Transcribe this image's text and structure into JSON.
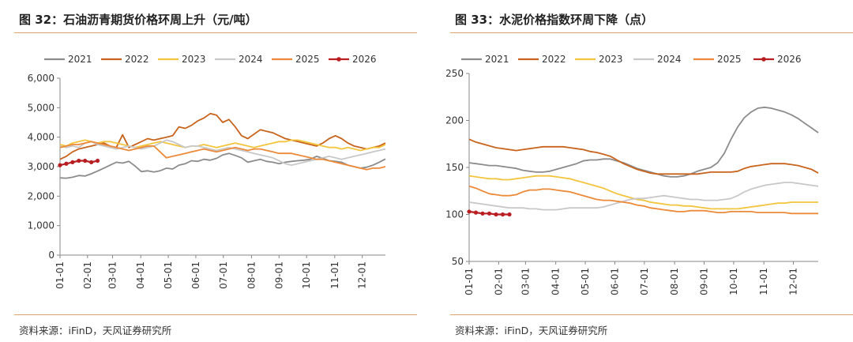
{
  "colors": {
    "2021": "#8c8c8c",
    "2022": "#c8641e",
    "2023": "#f2c53d",
    "2024": "#c8c8c8",
    "2025": "#ec8a3a",
    "2026": "#b81e22",
    "rule": "#d9a36a"
  },
  "left": {
    "title": "图 32：石油沥青期货价格环周上升（元/吨）",
    "source": "资料来源：iFinD，天风证券研究所"
  },
  "right": {
    "title": "图 33：水泥价格指数环周下降（点）",
    "source": "资料来源：iFinD，天风证券研究所"
  },
  "chart_data": [
    {
      "type": "line",
      "title": "石油沥青期货价格环周上升（元/吨）",
      "ylim": [
        0,
        6000
      ],
      "yticks": [
        0,
        1000,
        2000,
        3000,
        4000,
        5000,
        6000
      ],
      "ytick_labels": [
        "0",
        "1,000",
        "2,000",
        "3,000",
        "4,000",
        "5,000",
        "6,000"
      ],
      "xlim": [
        0,
        52
      ],
      "xtick_weeks": [
        0,
        4.4,
        8.4,
        12.9,
        17.3,
        21.7,
        26.1,
        30.6,
        35,
        39.4,
        43.9,
        48.3
      ],
      "xtick_labels": [
        "01-01",
        "02-01",
        "03-01",
        "04-01",
        "05-01",
        "06-01",
        "07-01",
        "08-01",
        "09-01",
        "10-01",
        "11-01",
        "12-01"
      ],
      "legend": [
        "2021",
        "2022",
        "2023",
        "2024",
        "2025",
        "2026"
      ],
      "series": [
        {
          "name": "2021",
          "values": [
            2620,
            2610,
            2640,
            2700,
            2680,
            2760,
            2850,
            2950,
            3050,
            3150,
            3120,
            3180,
            3020,
            2830,
            2860,
            2820,
            2860,
            2950,
            2920,
            3050,
            3100,
            3200,
            3180,
            3250,
            3220,
            3280,
            3400,
            3450,
            3380,
            3300,
            3150,
            3200,
            3250,
            3180,
            3150,
            3100,
            3150,
            3180,
            3200,
            3220,
            3250,
            3350,
            3280,
            3200,
            3180,
            3150,
            3050,
            3000,
            2950,
            2980,
            3050,
            3150,
            3260
          ]
        },
        {
          "name": "2022",
          "values": [
            3250,
            3350,
            3500,
            3600,
            3650,
            3700,
            3750,
            3800,
            3700,
            3650,
            4080,
            3650,
            3750,
            3850,
            3950,
            3900,
            3950,
            4000,
            4050,
            4350,
            4300,
            4400,
            4550,
            4650,
            4800,
            4750,
            4500,
            4600,
            4350,
            4050,
            3950,
            4100,
            4250,
            4200,
            4150,
            4050,
            3950,
            3900,
            3850,
            3800,
            3750,
            3700,
            3800,
            3950,
            4050,
            3950,
            3800,
            3700,
            3650,
            3600,
            3650,
            3700,
            3800
          ]
        },
        {
          "name": "2023",
          "values": [
            3750,
            3700,
            3800,
            3850,
            3900,
            3850,
            3800,
            3850,
            3850,
            3800,
            3750,
            3700,
            3650,
            3700,
            3750,
            3800,
            3850,
            3800,
            3750,
            3700,
            3650,
            3700,
            3700,
            3750,
            3700,
            3650,
            3700,
            3750,
            3800,
            3750,
            3700,
            3650,
            3700,
            3750,
            3800,
            3850,
            3850,
            3900,
            3900,
            3850,
            3800,
            3750,
            3700,
            3650,
            3650,
            3600,
            3650,
            3600,
            3550,
            3600,
            3650,
            3650,
            3750
          ]
        },
        {
          "name": "2024",
          "values": [
            3700,
            3650,
            3700,
            3650,
            3800,
            3850,
            3750,
            3700,
            3650,
            3600,
            3650,
            3700,
            3650,
            3600,
            3650,
            3700,
            3800,
            3900,
            3850,
            3750,
            3650,
            3700,
            3700,
            3650,
            3600,
            3550,
            3600,
            3650,
            3600,
            3550,
            3500,
            3450,
            3400,
            3350,
            3300,
            3200,
            3100,
            3050,
            3100,
            3150,
            3200,
            3250,
            3300,
            3350,
            3300,
            3250,
            3300,
            3350,
            3400,
            3450,
            3500,
            3550,
            3600
          ]
        },
        {
          "name": "2025",
          "values": [
            3650,
            3700,
            3750,
            3750,
            3800,
            3850,
            3800,
            3750,
            3700,
            3650,
            3600,
            3550,
            3600,
            3650,
            3700,
            3700,
            3500,
            3300,
            3350,
            3400,
            3450,
            3500,
            3550,
            3600,
            3550,
            3500,
            3550,
            3600,
            3650,
            3600,
            3550,
            3600,
            3600,
            3550,
            3500,
            3450,
            3450,
            3450,
            3400,
            3350,
            3300,
            3250,
            3250,
            3200,
            3150,
            3100,
            3050,
            3000,
            2950,
            2900,
            2950,
            2950,
            3000
          ]
        },
        {
          "name": "2026",
          "values": [
            3050,
            3100,
            3150,
            3200,
            3200,
            3150,
            3200
          ]
        }
      ]
    },
    {
      "type": "line",
      "title": "水泥价格指数环周下降（点）",
      "ylim": [
        50,
        250
      ],
      "yticks": [
        50,
        100,
        150,
        200,
        250
      ],
      "ytick_labels": [
        "50",
        "100",
        "150",
        "200",
        "250"
      ],
      "xlim": [
        0,
        52
      ],
      "xtick_weeks": [
        0,
        4.4,
        8.4,
        12.9,
        17.3,
        21.7,
        26.1,
        30.6,
        35,
        39.4,
        43.9,
        48.3
      ],
      "xtick_labels": [
        "01-01",
        "02-01",
        "03-01",
        "04-01",
        "05-01",
        "06-01",
        "07-01",
        "08-01",
        "09-01",
        "10-01",
        "11-01",
        "12-01"
      ],
      "legend": [
        "2021",
        "2022",
        "2023",
        "2024",
        "2025",
        "2026"
      ],
      "series": [
        {
          "name": "2021",
          "values": [
            155,
            154,
            153,
            152,
            152,
            151,
            150,
            149,
            147,
            146,
            145,
            145,
            146,
            148,
            150,
            152,
            154,
            157,
            158,
            158,
            159,
            159,
            157,
            155,
            152,
            149,
            147,
            145,
            143,
            141,
            140,
            140,
            141,
            143,
            146,
            148,
            150,
            155,
            165,
            180,
            193,
            203,
            209,
            213,
            214,
            213,
            211,
            209,
            206,
            202,
            197,
            192,
            187
          ]
        },
        {
          "name": "2022",
          "values": [
            180,
            177,
            175,
            173,
            171,
            170,
            169,
            168,
            169,
            170,
            171,
            172,
            172,
            172,
            172,
            171,
            170,
            169,
            167,
            166,
            164,
            162,
            158,
            154,
            151,
            148,
            146,
            144,
            143,
            143,
            143,
            143,
            143,
            143,
            143,
            144,
            145,
            145,
            145,
            145,
            146,
            149,
            151,
            152,
            153,
            154,
            154,
            154,
            153,
            152,
            150,
            148,
            144
          ]
        },
        {
          "name": "2023",
          "values": [
            141,
            140,
            139,
            138,
            138,
            137,
            137,
            138,
            139,
            140,
            141,
            141,
            141,
            140,
            139,
            138,
            136,
            134,
            132,
            130,
            128,
            125,
            122,
            120,
            118,
            116,
            115,
            113,
            112,
            111,
            110,
            110,
            109,
            109,
            108,
            107,
            106,
            106,
            106,
            106,
            106,
            107,
            108,
            109,
            110,
            111,
            112,
            112,
            113,
            113,
            113,
            113,
            113
          ]
        },
        {
          "name": "2024",
          "values": [
            113,
            112,
            111,
            110,
            109,
            108,
            107,
            107,
            107,
            106,
            106,
            105,
            105,
            105,
            106,
            107,
            107,
            107,
            107,
            107,
            108,
            110,
            112,
            114,
            116,
            117,
            117,
            118,
            119,
            120,
            119,
            118,
            117,
            116,
            116,
            115,
            115,
            115,
            116,
            117,
            120,
            124,
            127,
            129,
            131,
            132,
            133,
            134,
            134,
            133,
            132,
            131,
            130
          ]
        },
        {
          "name": "2025",
          "values": [
            130,
            128,
            125,
            122,
            121,
            120,
            120,
            121,
            124,
            126,
            126,
            127,
            127,
            126,
            125,
            124,
            122,
            120,
            118,
            116,
            115,
            115,
            114,
            113,
            112,
            110,
            109,
            107,
            106,
            105,
            104,
            103,
            103,
            104,
            104,
            104,
            103,
            102,
            102,
            103,
            103,
            103,
            103,
            102,
            102,
            102,
            102,
            102,
            101,
            101,
            101,
            101,
            101
          ]
        },
        {
          "name": "2026",
          "values": [
            103,
            102,
            101,
            101,
            100,
            100,
            100
          ]
        }
      ]
    }
  ]
}
